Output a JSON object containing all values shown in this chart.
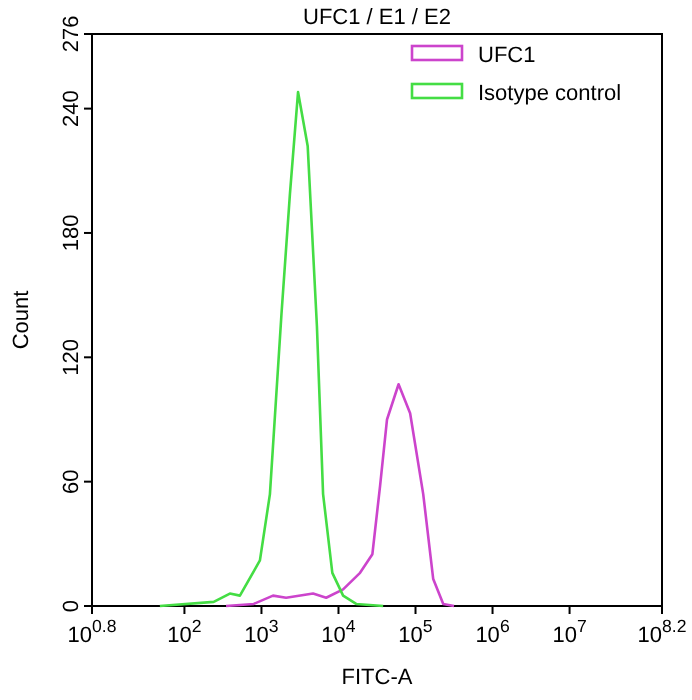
{
  "chart_data": {
    "type": "line",
    "title": "UFC1 / E1 / E2",
    "xlabel": "FITC-A",
    "ylabel": "Count",
    "log": "x",
    "legend": "top right",
    "marker": "none",
    "line_style": "solid",
    "grid": false,
    "xlim": [
      6.30957,
      158489319
    ],
    "xticks": [
      {
        "value": 6.30957,
        "label": "10$^{0.8}$"
      },
      {
        "value": 100,
        "label": "10$^{2}$"
      },
      {
        "value": 1000,
        "label": "10$^{3}$"
      },
      {
        "value": 10000,
        "label": "10$^{4}$"
      },
      {
        "value": 100000,
        "label": "10$^{5}$"
      },
      {
        "value": 1000000,
        "label": "10$^{6}$"
      },
      {
        "value": 10000000,
        "label": "10$^{7}$"
      },
      {
        "value": 158489319,
        "label": "10$^{8.2}$"
      }
    ],
    "ylim": [
      0,
      276
    ],
    "yticks": [
      0,
      60,
      120,
      180,
      240,
      276
    ],
    "series": [
      {
        "name": "UFC1",
        "color": "#cc44cc",
        "x": [
          347,
          794,
          1413,
          2089,
          4677,
          6918,
          11482,
          19055,
          27542,
          34674,
          42658,
          60256,
          85114,
          125893,
          169824,
          229087,
          316228
        ],
        "values": [
          0,
          1,
          5,
          4,
          6,
          4,
          8,
          16,
          25,
          58,
          90,
          107,
          93,
          54,
          13,
          1,
          0
        ]
      },
      {
        "name": "Isotype control",
        "color": "#44dd44",
        "x": [
          48,
          240,
          389,
          525,
          955,
          1288,
          1820,
          2344,
          2985,
          3981,
          5248,
          6310,
          8318,
          11482,
          16982,
          38019
        ],
        "values": [
          0,
          2,
          6,
          5,
          22,
          54,
          141,
          199,
          248,
          222,
          135,
          54,
          16,
          5,
          1,
          0
        ]
      }
    ]
  }
}
